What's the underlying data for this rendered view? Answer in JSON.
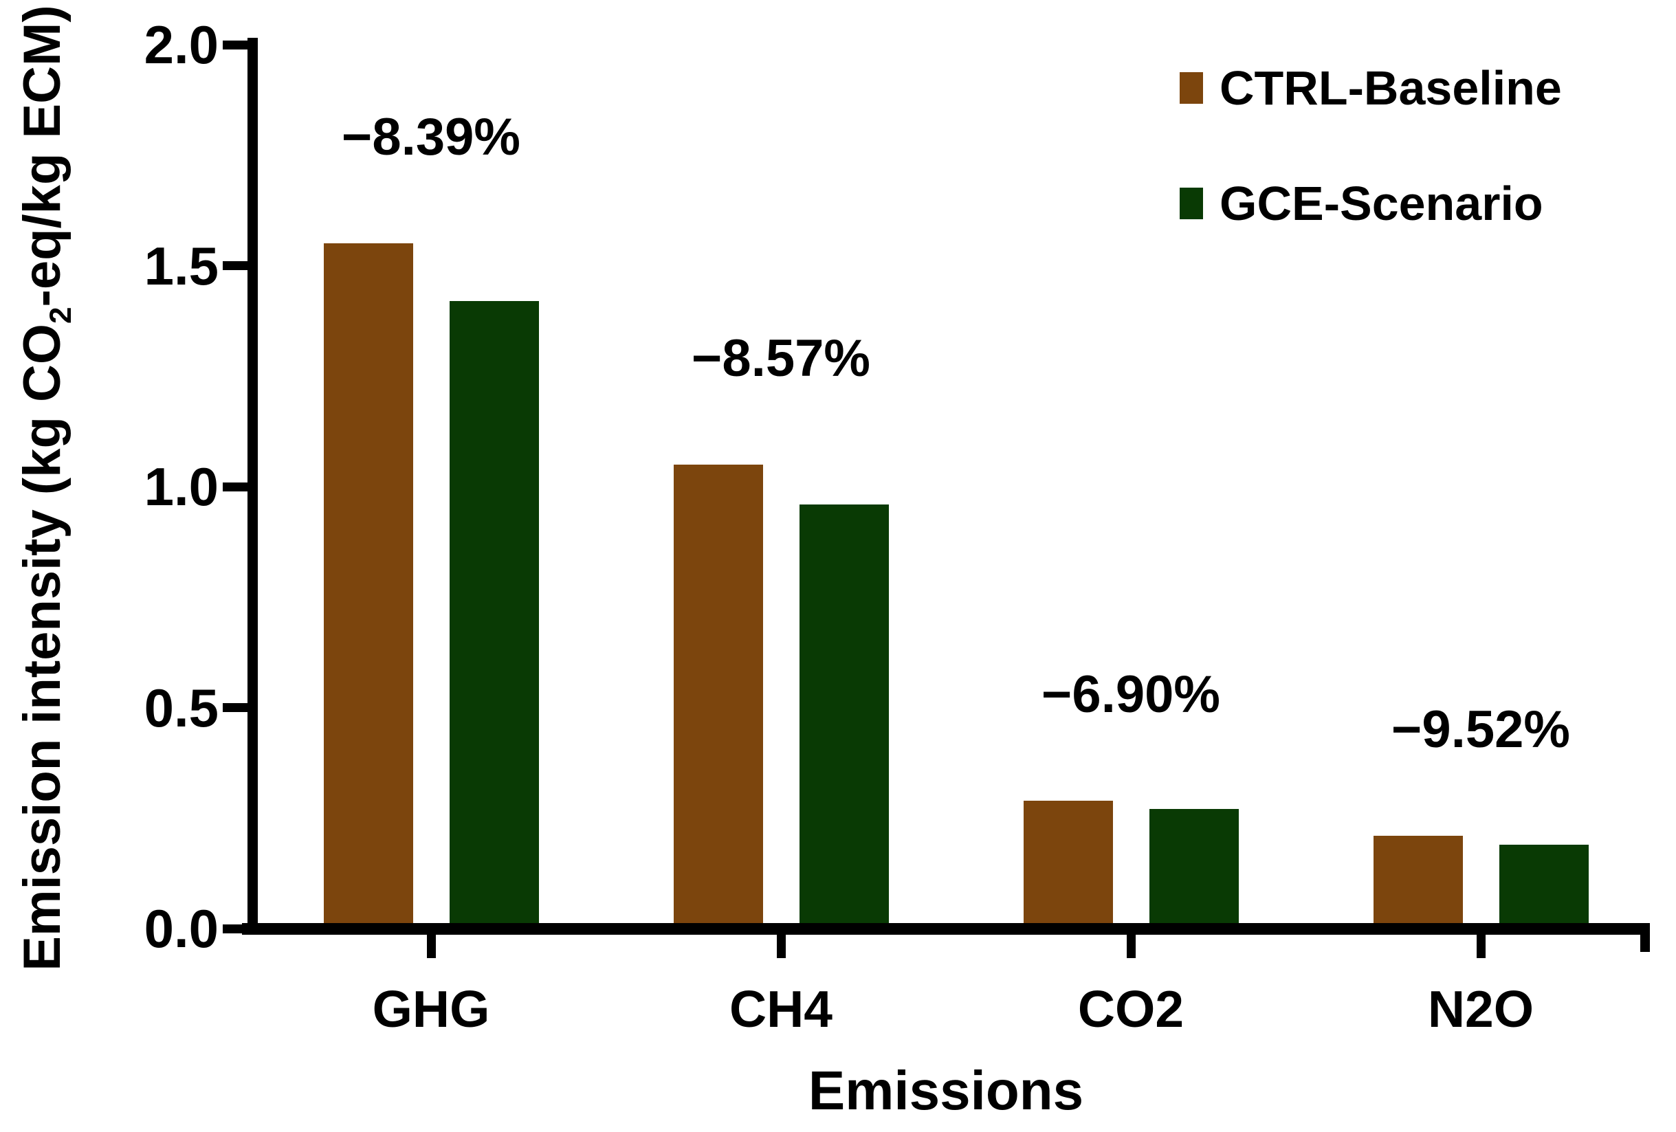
{
  "figure": {
    "background": "#ffffff",
    "text_color": "#000000",
    "axis_color": "#000000"
  },
  "legend": {
    "position": "top-right",
    "items": [
      {
        "label": "CTRL-Baseline",
        "color": "#7C450D"
      },
      {
        "label": "GCE-Scenario",
        "color": "#093A04"
      }
    ]
  },
  "chart_data": {
    "type": "bar",
    "title": "",
    "xlabel": "Emissions",
    "ylabel": "Emission intensity (kg CO2-eq/kg ECM)",
    "ylabel_parts": {
      "pre": "Emission intensity (kg CO",
      "sub": "2",
      "post": "-eq/kg ECM)"
    },
    "categories": [
      "GHG",
      "CH4",
      "CO2",
      "N2O"
    ],
    "series": [
      {
        "name": "CTRL-Baseline",
        "color": "#7C450D",
        "values": [
          1.55,
          1.05,
          0.29,
          0.21
        ]
      },
      {
        "name": "GCE-Scenario",
        "color": "#093A04",
        "values": [
          1.42,
          0.96,
          0.27,
          0.19
        ]
      }
    ],
    "annotations": [
      {
        "category": "GHG",
        "text": "−8.39%"
      },
      {
        "category": "CH4",
        "text": "−8.57%"
      },
      {
        "category": "CO2",
        "text": "−6.90%"
      },
      {
        "category": "N2O",
        "text": "−9.52%"
      }
    ],
    "yticks": [
      "0.0",
      "0.5",
      "1.0",
      "1.5",
      "2.0"
    ],
    "ylim": [
      0.0,
      2.0
    ],
    "grid": false,
    "legend_position": "top-right"
  }
}
